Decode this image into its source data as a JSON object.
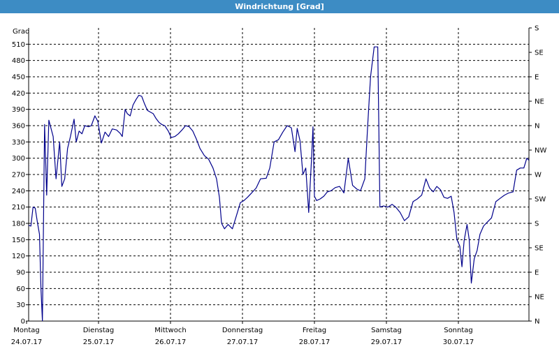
{
  "window": {
    "title": "Windrichtung [Grad]"
  },
  "chart_data": {
    "type": "line",
    "title": "Windrichtung [Grad]",
    "ylabel": "Grad",
    "ylim": [
      0,
      540
    ],
    "xlim": [
      0,
      7
    ],
    "grid": true,
    "yticks": [
      0,
      30,
      60,
      90,
      120,
      150,
      180,
      210,
      240,
      270,
      300,
      330,
      360,
      390,
      420,
      450,
      480,
      510
    ],
    "right_axis": {
      "ticks": [
        {
          "value": 0,
          "label": "N"
        },
        {
          "value": 45,
          "label": "NE"
        },
        {
          "value": 90,
          "label": "E"
        },
        {
          "value": 135,
          "label": "SE"
        },
        {
          "value": 180,
          "label": "S"
        },
        {
          "value": 225,
          "label": "SW"
        },
        {
          "value": 270,
          "label": "W"
        },
        {
          "value": 315,
          "label": "NW"
        },
        {
          "value": 360,
          "label": "N"
        },
        {
          "value": 405,
          "label": "NE"
        },
        {
          "value": 450,
          "label": "E"
        },
        {
          "value": 495,
          "label": "SE"
        },
        {
          "value": 540,
          "label": "S"
        }
      ]
    },
    "xticks": [
      {
        "day": "Montag",
        "date": "24.07.17"
      },
      {
        "day": "Dienstag",
        "date": "25.07.17"
      },
      {
        "day": "Mittwoch",
        "date": "26.07.17"
      },
      {
        "day": "Donnerstag",
        "date": "27.07.17"
      },
      {
        "day": "Freitag",
        "date": "28.07.17"
      },
      {
        "day": "Samstag",
        "date": "29.07.17"
      },
      {
        "day": "Sonntag",
        "date": "30.07.17"
      }
    ],
    "series_color": "#00008b",
    "series": [
      {
        "points": [
          [
            0.0,
            178
          ],
          [
            0.06,
            175
          ],
          [
            0.09,
            210
          ],
          [
            0.12,
            208
          ],
          [
            0.15,
            182
          ],
          [
            0.18,
            160
          ],
          [
            0.2,
            60
          ],
          [
            0.22,
            0
          ],
          [
            0.25,
            362
          ],
          [
            0.28,
            232
          ],
          [
            0.31,
            370
          ],
          [
            0.37,
            340
          ],
          [
            0.41,
            262
          ],
          [
            0.46,
            330
          ],
          [
            0.49,
            248
          ],
          [
            0.53,
            262
          ],
          [
            0.57,
            318
          ],
          [
            0.61,
            340
          ],
          [
            0.66,
            372
          ],
          [
            0.69,
            330
          ],
          [
            0.73,
            350
          ],
          [
            0.77,
            345
          ],
          [
            0.81,
            360
          ],
          [
            0.86,
            358
          ],
          [
            0.9,
            360
          ],
          [
            0.95,
            378
          ],
          [
            0.99,
            368
          ],
          [
            1.04,
            328
          ],
          [
            1.09,
            348
          ],
          [
            1.14,
            340
          ],
          [
            1.19,
            354
          ],
          [
            1.25,
            352
          ],
          [
            1.3,
            346
          ],
          [
            1.33,
            340
          ],
          [
            1.37,
            390
          ],
          [
            1.4,
            382
          ],
          [
            1.44,
            378
          ],
          [
            1.48,
            398
          ],
          [
            1.52,
            408
          ],
          [
            1.56,
            416
          ],
          [
            1.6,
            414
          ],
          [
            1.64,
            400
          ],
          [
            1.68,
            388
          ],
          [
            1.72,
            385
          ],
          [
            1.76,
            382
          ],
          [
            1.8,
            373
          ],
          [
            1.84,
            366
          ],
          [
            1.88,
            362
          ],
          [
            1.92,
            360
          ],
          [
            1.97,
            350
          ],
          [
            2.01,
            338
          ],
          [
            2.06,
            340
          ],
          [
            2.11,
            345
          ],
          [
            2.16,
            352
          ],
          [
            2.21,
            360
          ],
          [
            2.26,
            358
          ],
          [
            2.31,
            350
          ],
          [
            2.36,
            335
          ],
          [
            2.41,
            318
          ],
          [
            2.47,
            305
          ],
          [
            2.53,
            298
          ],
          [
            2.59,
            282
          ],
          [
            2.64,
            262
          ],
          [
            2.68,
            228
          ],
          [
            2.71,
            180
          ],
          [
            2.75,
            170
          ],
          [
            2.8,
            178
          ],
          [
            2.86,
            170
          ],
          [
            2.92,
            196
          ],
          [
            2.97,
            218
          ],
          [
            3.02,
            222
          ],
          [
            3.07,
            228
          ],
          [
            3.12,
            235
          ],
          [
            3.19,
            245
          ],
          [
            3.25,
            262
          ],
          [
            3.33,
            263
          ],
          [
            3.38,
            282
          ],
          [
            3.44,
            330
          ],
          [
            3.5,
            334
          ],
          [
            3.56,
            348
          ],
          [
            3.62,
            360
          ],
          [
            3.68,
            356
          ],
          [
            3.73,
            312
          ],
          [
            3.76,
            355
          ],
          [
            3.8,
            332
          ],
          [
            3.84,
            270
          ],
          [
            3.88,
            282
          ],
          [
            3.92,
            200
          ],
          [
            3.96,
            300
          ],
          [
            3.98,
            358
          ],
          [
            4.0,
            230
          ],
          [
            4.03,
            222
          ],
          [
            4.08,
            225
          ],
          [
            4.13,
            230
          ],
          [
            4.18,
            238
          ],
          [
            4.23,
            240
          ],
          [
            4.29,
            246
          ],
          [
            4.35,
            248
          ],
          [
            4.41,
            236
          ],
          [
            4.47,
            300
          ],
          [
            4.53,
            250
          ],
          [
            4.59,
            243
          ],
          [
            4.64,
            240
          ],
          [
            4.7,
            262
          ],
          [
            4.74,
            360
          ],
          [
            4.78,
            450
          ],
          [
            4.83,
            505
          ],
          [
            4.88,
            505
          ],
          [
            4.91,
            210
          ],
          [
            4.96,
            212
          ],
          [
            5.02,
            210
          ],
          [
            5.08,
            215
          ],
          [
            5.13,
            210
          ],
          [
            5.19,
            200
          ],
          [
            5.25,
            185
          ],
          [
            5.31,
            192
          ],
          [
            5.37,
            220
          ],
          [
            5.43,
            225
          ],
          [
            5.49,
            232
          ],
          [
            5.55,
            262
          ],
          [
            5.6,
            245
          ],
          [
            5.65,
            238
          ],
          [
            5.7,
            248
          ],
          [
            5.75,
            242
          ],
          [
            5.8,
            228
          ],
          [
            5.85,
            226
          ],
          [
            5.9,
            230
          ],
          [
            5.94,
            200
          ],
          [
            5.98,
            150
          ],
          [
            6.02,
            138
          ],
          [
            6.05,
            100
          ],
          [
            6.08,
            148
          ],
          [
            6.12,
            178
          ],
          [
            6.15,
            150
          ],
          [
            6.18,
            70
          ],
          [
            6.22,
            115
          ],
          [
            6.26,
            130
          ],
          [
            6.3,
            160
          ],
          [
            6.35,
            175
          ],
          [
            6.4,
            182
          ],
          [
            6.46,
            190
          ],
          [
            6.52,
            220
          ],
          [
            6.58,
            226
          ],
          [
            6.64,
            232
          ],
          [
            6.7,
            236
          ],
          [
            6.76,
            238
          ],
          [
            6.81,
            278
          ],
          [
            6.86,
            282
          ],
          [
            6.91,
            282
          ],
          [
            6.95,
            300
          ],
          [
            6.99,
            295
          ],
          [
            7.02,
            360
          ]
        ]
      }
    ]
  }
}
